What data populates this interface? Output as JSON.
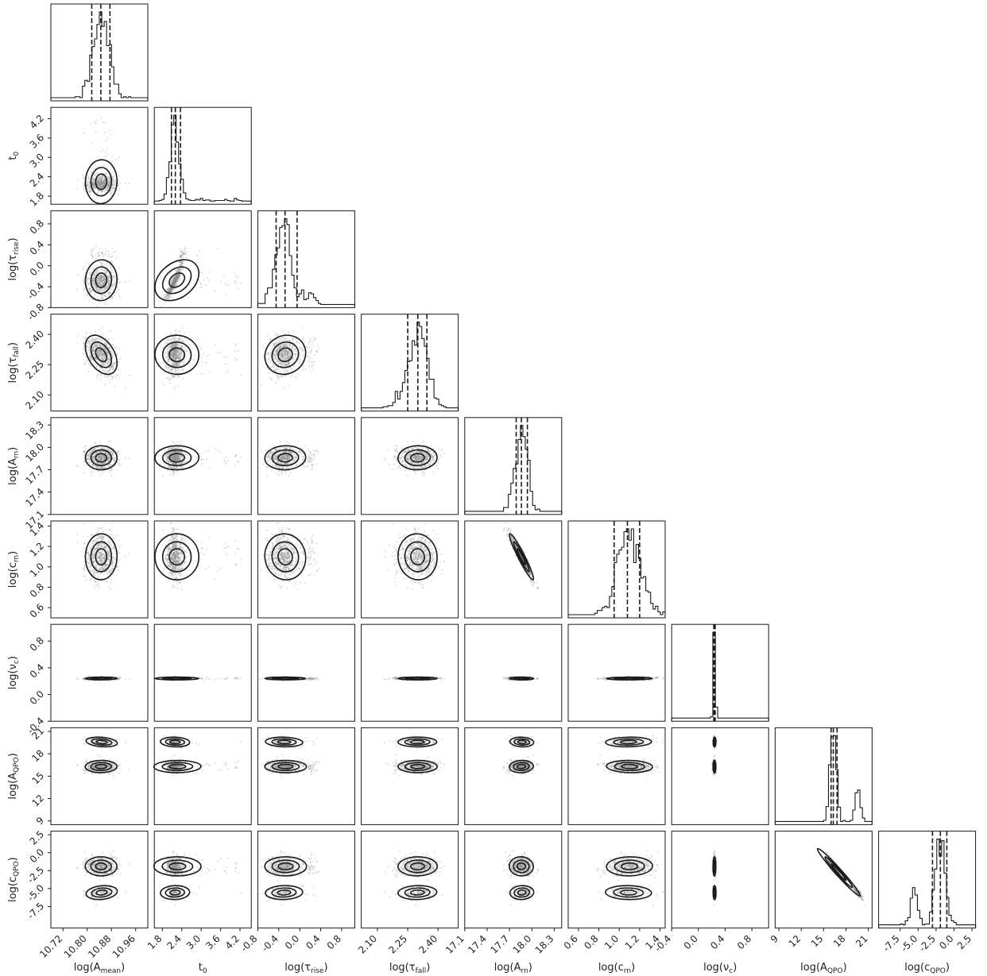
{
  "chart_data": {
    "type": "corner",
    "parameters": [
      {
        "key": "A_mean",
        "label_base": "log(A",
        "label_sub": "mean",
        "label_tail": ")",
        "ticks": [
          "10.72",
          "10.80",
          "10.88",
          "10.96"
        ],
        "range": [
          10.68,
          11.0
        ],
        "quantiles": [
          10.815,
          10.845,
          10.875
        ],
        "mode": 10.845,
        "sigma": 0.026
      },
      {
        "key": "t0",
        "label_base": "t",
        "label_sub": "0",
        "label_tail": "",
        "ticks": [
          "1.8",
          "2.4",
          "3.0",
          "3.6",
          "4.2"
        ],
        "range": [
          1.55,
          4.55
        ],
        "quantiles": [
          2.08,
          2.2,
          2.36
        ],
        "mode": 2.18,
        "sigma": 0.13
      },
      {
        "key": "tau_rise",
        "label_base": "log(τ",
        "label_sub": "rise",
        "label_tail": ")",
        "ticks": [
          "-0.8",
          "-0.4",
          "0.0",
          "0.4",
          "0.8"
        ],
        "range": [
          -0.8,
          1.05
        ],
        "quantiles": [
          -0.45,
          -0.28,
          -0.05
        ],
        "mode": -0.3,
        "sigma": 0.15
      },
      {
        "key": "tau_fall",
        "label_base": "log(τ",
        "label_sub": "fall",
        "label_tail": ")",
        "ticks": [
          "2.10",
          "2.25",
          "2.40"
        ],
        "range": [
          2.02,
          2.5
        ],
        "quantiles": [
          2.25,
          2.3,
          2.345
        ],
        "mode": 2.3,
        "sigma": 0.05
      },
      {
        "key": "A_rn",
        "label_base": "log(A",
        "label_sub": "rn",
        "label_tail": ")",
        "ticks": [
          "17.1",
          "17.4",
          "17.7",
          "18.0",
          "18.3"
        ],
        "range": [
          17.1,
          18.4
        ],
        "quantiles": [
          17.79,
          17.86,
          17.94
        ],
        "mode": 17.86,
        "sigma": 0.08
      },
      {
        "key": "c_rn",
        "label_base": "log(c",
        "label_sub": "rn",
        "label_tail": ")",
        "ticks": [
          "0.6",
          "0.8",
          "1.0",
          "1.2",
          "1.4"
        ],
        "range": [
          0.5,
          1.45
        ],
        "quantiles": [
          0.95,
          1.08,
          1.2
        ],
        "mode": 1.1,
        "sigma": 0.11
      },
      {
        "key": "nu_c",
        "label_base": "log(ν",
        "label_sub": "c",
        "label_tail": ")",
        "ticks": [
          "-0.4",
          "0.0",
          "0.4",
          "0.8"
        ],
        "range": [
          -0.4,
          1.05
        ],
        "quantiles": [
          0.23,
          0.24,
          0.25
        ],
        "mode": 0.24,
        "sigma": 0.01
      },
      {
        "key": "A_QPO",
        "label_base": "log(A",
        "label_sub": "QPO",
        "label_tail": ")",
        "ticks": [
          "9",
          "12",
          "15",
          "18",
          "21"
        ],
        "range": [
          8.5,
          21.5
        ],
        "quantiles": [
          16.0,
          16.3,
          16.8
        ],
        "mode": 16.3,
        "sigma": 0.35
      },
      {
        "key": "c_QPO",
        "label_base": "log(c",
        "label_sub": "QPO",
        "label_tail": ")",
        "ticks": [
          "-7.5",
          "-5.0",
          "-2.5",
          "0.0",
          "2.5"
        ],
        "range": [
          -10.5,
          3.0
        ],
        "quantiles": [
          -3.0,
          -1.9,
          -1.0
        ],
        "mode": -1.9,
        "sigma": 0.6
      }
    ],
    "bimodal": {
      "A_QPO": {
        "main": 16.3,
        "main_sd": 0.4,
        "alt": 19.6,
        "alt_sd": 0.35
      },
      "c_QPO": {
        "main": -1.9,
        "main_sd": 0.65,
        "alt": -5.6,
        "alt_sd": 0.45
      }
    },
    "correlations": {
      "t0|tau_rise": 0.93,
      "A_mean|tau_fall": -0.45,
      "A_rn|c_rn": -0.95,
      "A_QPO|c_QPO": -0.85
    },
    "quantile_levels": [
      0.16,
      0.5,
      0.84
    ],
    "grid": false,
    "colors": {
      "line": "#1a1a1a",
      "scatter": "#8c8c8c",
      "background": "#ffffff"
    }
  }
}
